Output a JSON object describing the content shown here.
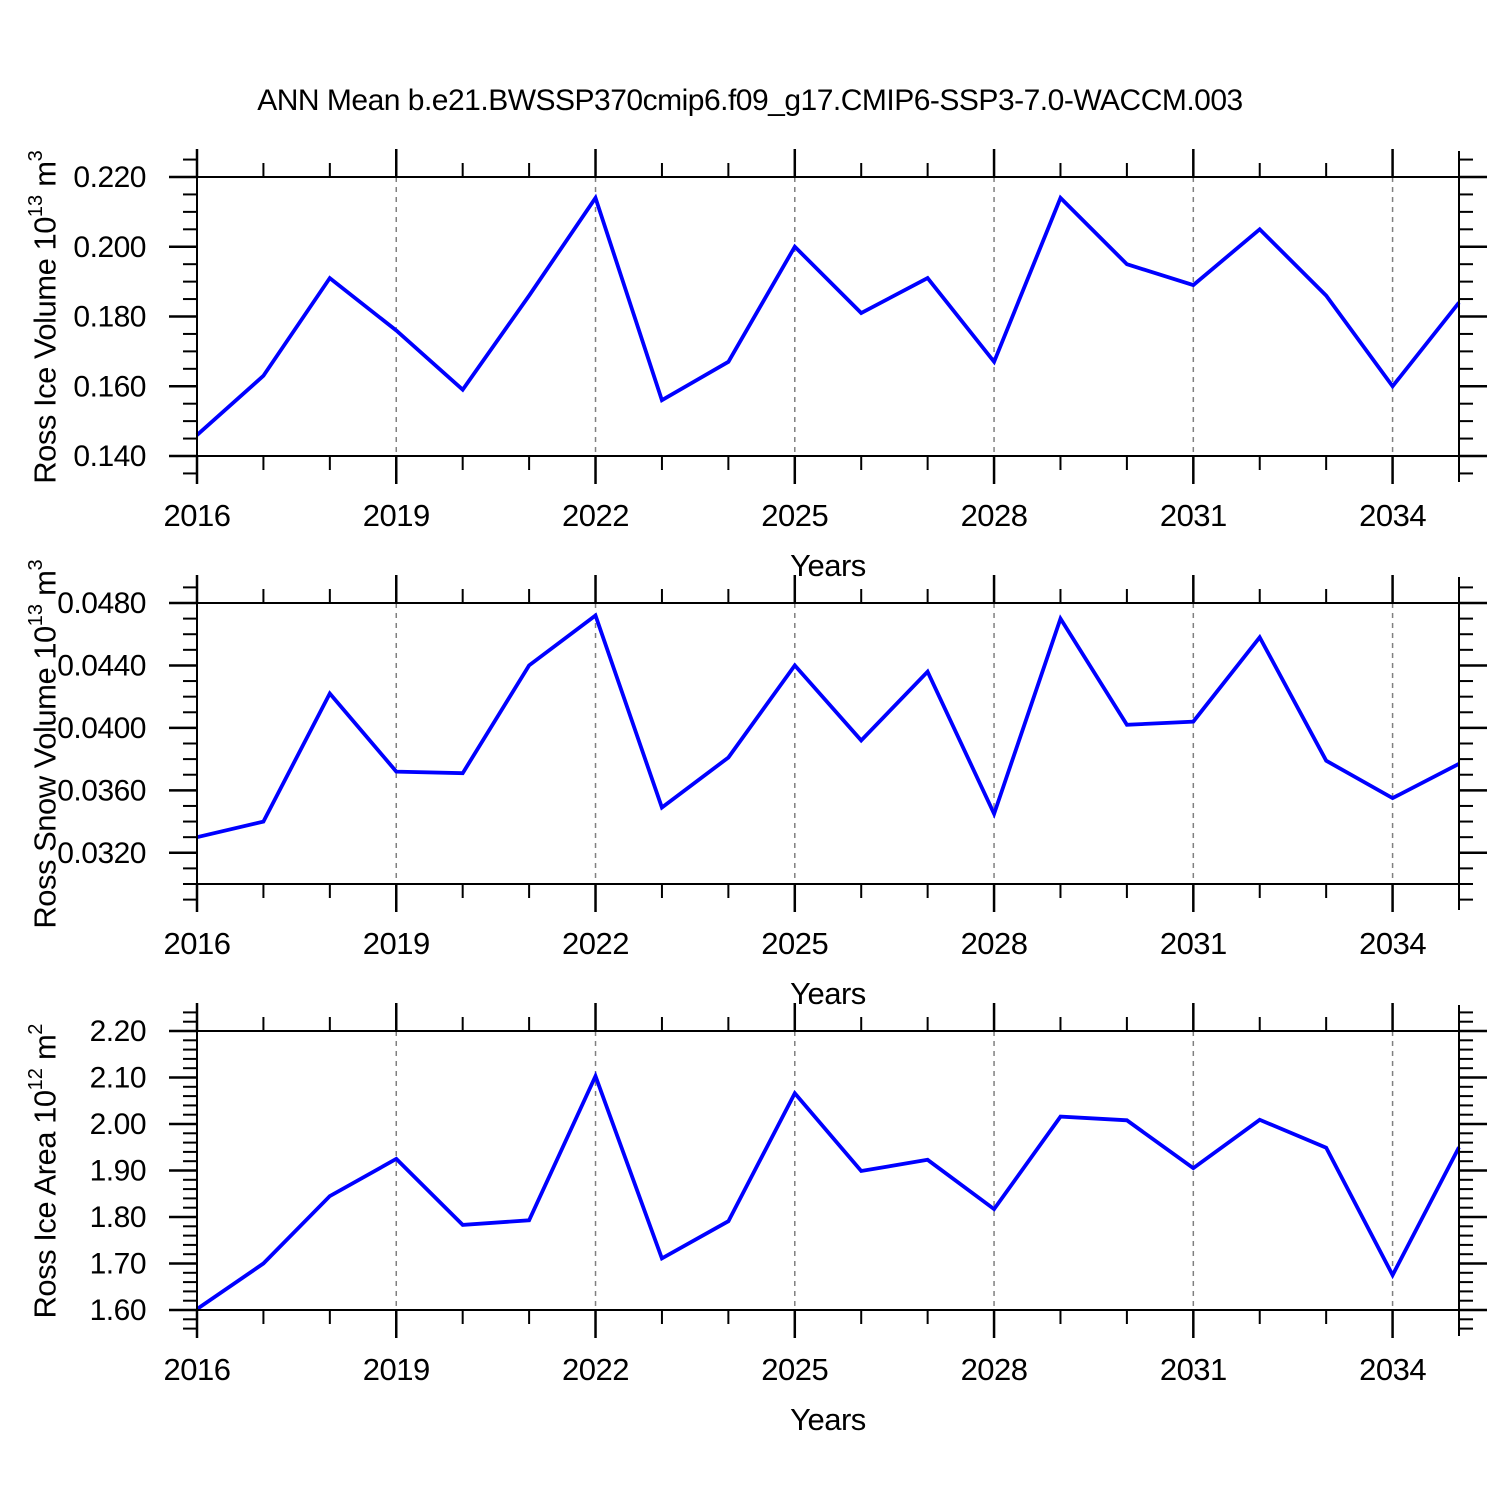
{
  "title": "ANN Mean b.e21.BWSSP370cmip6.f09_g17.CMIP6-SSP3-7.0-WACCM.003",
  "xlabel": "Years",
  "line_color": "#0000ff",
  "grid_color": "#808080",
  "axis_color": "#000000",
  "chart_data": [
    {
      "type": "line",
      "ylabel": "Ross Ice Volume 10^13 m^3",
      "ylabel_parts": [
        {
          "text": "Ross Ice Volume 10"
        },
        {
          "sup": "13"
        },
        {
          "text": " m"
        },
        {
          "sup": "3"
        }
      ],
      "xlabel": "Years",
      "xlim": [
        2016,
        2035
      ],
      "ylim": [
        0.14,
        0.22
      ],
      "x": [
        2016,
        2017,
        2018,
        2019,
        2020,
        2021,
        2022,
        2023,
        2024,
        2025,
        2026,
        2027,
        2028,
        2029,
        2030,
        2031,
        2032,
        2033,
        2034,
        2035
      ],
      "values": [
        0.146,
        0.163,
        0.191,
        0.176,
        0.159,
        0.186,
        0.214,
        0.156,
        0.167,
        0.2,
        0.181,
        0.191,
        0.167,
        0.214,
        0.195,
        0.189,
        0.205,
        0.186,
        0.16,
        0.184
      ],
      "y_major_ticks": [
        {
          "value": 0.14,
          "label": "0.140"
        },
        {
          "value": 0.16,
          "label": "0.160"
        },
        {
          "value": 0.18,
          "label": "0.180"
        },
        {
          "value": 0.2,
          "label": "0.200"
        },
        {
          "value": 0.22,
          "label": "0.220"
        }
      ],
      "y_minor_step": 0.005,
      "x_major_ticks": [
        {
          "value": 2016,
          "label": "2016"
        },
        {
          "value": 2019,
          "label": "2019"
        },
        {
          "value": 2022,
          "label": "2022"
        },
        {
          "value": 2025,
          "label": "2025"
        },
        {
          "value": 2028,
          "label": "2028"
        },
        {
          "value": 2031,
          "label": "2031"
        },
        {
          "value": 2034,
          "label": "2034"
        }
      ],
      "x_minor_step": 1,
      "grid_x": [
        2019,
        2022,
        2025,
        2028,
        2031,
        2034
      ],
      "grid_style": "vertical-dashed",
      "legend": "none"
    },
    {
      "type": "line",
      "ylabel": "Ross Snow Volume 10^13 m^3",
      "ylabel_parts": [
        {
          "text": "Ross Snow Volume 10"
        },
        {
          "sup": "13"
        },
        {
          "text": " m"
        },
        {
          "sup": "3"
        }
      ],
      "xlabel": "Years",
      "xlim": [
        2016,
        2035
      ],
      "ylim": [
        0.03,
        0.048
      ],
      "x": [
        2016,
        2017,
        2018,
        2019,
        2020,
        2021,
        2022,
        2023,
        2024,
        2025,
        2026,
        2027,
        2028,
        2029,
        2030,
        2031,
        2032,
        2033,
        2034,
        2035
      ],
      "values": [
        0.033,
        0.034,
        0.0422,
        0.0372,
        0.0371,
        0.044,
        0.0472,
        0.0349,
        0.0381,
        0.044,
        0.0392,
        0.0436,
        0.0345,
        0.047,
        0.0402,
        0.0404,
        0.0458,
        0.0379,
        0.0355,
        0.0377
      ],
      "y_major_ticks": [
        {
          "value": 0.032,
          "label": "0.0320"
        },
        {
          "value": 0.036,
          "label": "0.0360"
        },
        {
          "value": 0.04,
          "label": "0.0400"
        },
        {
          "value": 0.044,
          "label": "0.0440"
        },
        {
          "value": 0.048,
          "label": "0.0480"
        }
      ],
      "y_minor_step": 0.001,
      "x_major_ticks": [
        {
          "value": 2016,
          "label": "2016"
        },
        {
          "value": 2019,
          "label": "2019"
        },
        {
          "value": 2022,
          "label": "2022"
        },
        {
          "value": 2025,
          "label": "2025"
        },
        {
          "value": 2028,
          "label": "2028"
        },
        {
          "value": 2031,
          "label": "2031"
        },
        {
          "value": 2034,
          "label": "2034"
        }
      ],
      "x_minor_step": 1,
      "grid_x": [
        2019,
        2022,
        2025,
        2028,
        2031,
        2034
      ],
      "grid_style": "vertical-dashed",
      "legend": "none"
    },
    {
      "type": "line",
      "ylabel": "Ross Ice Area 10^12 m^2",
      "ylabel_parts": [
        {
          "text": "Ross Ice Area 10"
        },
        {
          "sup": "12"
        },
        {
          "text": " m"
        },
        {
          "sup": "2"
        }
      ],
      "xlabel": "Years",
      "xlim": [
        2016,
        2035
      ],
      "ylim": [
        1.6,
        2.2
      ],
      "x": [
        2016,
        2017,
        2018,
        2019,
        2020,
        2021,
        2022,
        2023,
        2024,
        2025,
        2026,
        2027,
        2028,
        2029,
        2030,
        2031,
        2032,
        2033,
        2034,
        2035
      ],
      "values": [
        1.602,
        1.7,
        1.845,
        1.925,
        1.783,
        1.793,
        2.103,
        1.711,
        1.791,
        2.066,
        1.899,
        1.923,
        1.817,
        2.016,
        2.008,
        1.905,
        2.009,
        1.949,
        1.675,
        1.95
      ],
      "y_major_ticks": [
        {
          "value": 1.6,
          "label": "1.60"
        },
        {
          "value": 1.7,
          "label": "1.70"
        },
        {
          "value": 1.8,
          "label": "1.80"
        },
        {
          "value": 1.9,
          "label": "1.90"
        },
        {
          "value": 2.0,
          "label": "2.00"
        },
        {
          "value": 2.1,
          "label": "2.10"
        },
        {
          "value": 2.2,
          "label": "2.20"
        }
      ],
      "y_minor_step": 0.02,
      "x_major_ticks": [
        {
          "value": 2016,
          "label": "2016"
        },
        {
          "value": 2019,
          "label": "2019"
        },
        {
          "value": 2022,
          "label": "2022"
        },
        {
          "value": 2025,
          "label": "2025"
        },
        {
          "value": 2028,
          "label": "2028"
        },
        {
          "value": 2031,
          "label": "2031"
        },
        {
          "value": 2034,
          "label": "2034"
        }
      ],
      "x_minor_step": 1,
      "grid_x": [
        2019,
        2022,
        2025,
        2028,
        2031,
        2034
      ],
      "grid_style": "vertical-dashed",
      "legend": "none"
    }
  ]
}
